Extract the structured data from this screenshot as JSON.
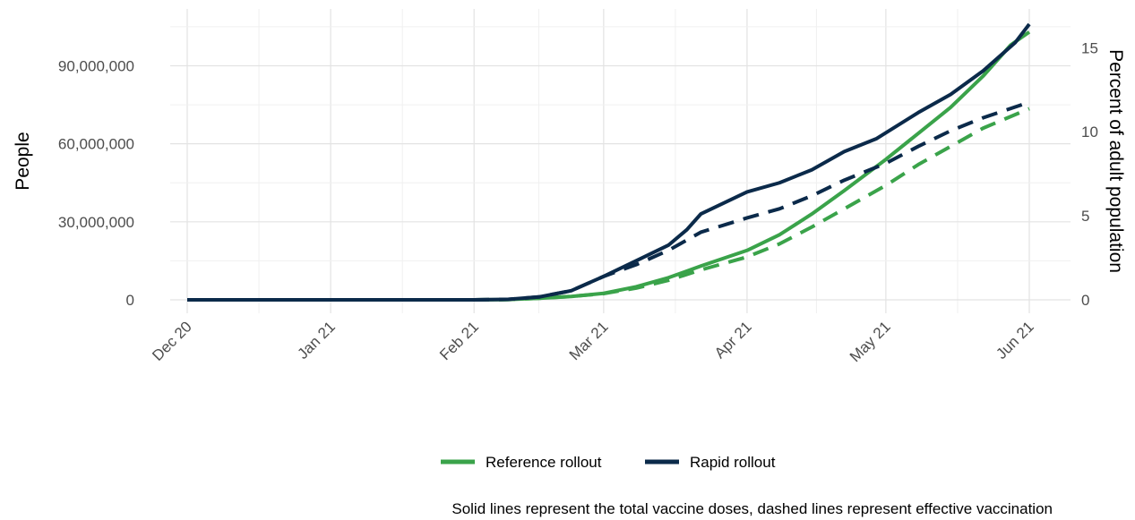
{
  "chart_data": {
    "type": "line",
    "title": "",
    "ylabel": "People",
    "y2label": "Percent of adult population",
    "caption": "Solid lines represent the total vaccine doses, dashed lines represent effective vaccination",
    "ylim": [
      0,
      106000000
    ],
    "y2lim": [
      0,
      16.4
    ],
    "yticks": [
      0,
      30000000,
      60000000,
      90000000
    ],
    "ytick_labels": [
      "0",
      "30,000,000",
      "60,000,000",
      "90,000,000"
    ],
    "y2ticks": [
      0,
      5,
      10,
      15
    ],
    "y2tick_labels": [
      "0",
      "5",
      "10",
      "15"
    ],
    "x_axis": {
      "type": "date",
      "range": [
        "2020-12-01",
        "2021-06-01"
      ],
      "ticks": [
        "2020-12-01",
        "2021-01-01",
        "2021-02-01",
        "2021-03-01",
        "2021-04-01",
        "2021-05-01",
        "2021-06-01"
      ],
      "tick_labels": [
        "Dec 20",
        "Jan 21",
        "Feb 21",
        "Mar 21",
        "Apr 21",
        "May 21",
        "Jun 21"
      ]
    },
    "grid": true,
    "legend_position": "bottom",
    "legend": [
      {
        "label": "Reference rollout",
        "color": "#3aa34a"
      },
      {
        "label": "Rapid rollout",
        "color": "#0b2a4a"
      }
    ],
    "series": [
      {
        "legend_index": 0,
        "line": "solid",
        "color": "#3aa34a",
        "points": [
          [
            "2020-12-01",
            0
          ],
          [
            "2021-01-01",
            0
          ],
          [
            "2021-02-01",
            0
          ],
          [
            "2021-02-08",
            80000
          ],
          [
            "2021-02-15",
            600000
          ],
          [
            "2021-02-22",
            1300000
          ],
          [
            "2021-03-01",
            2500000
          ],
          [
            "2021-03-08",
            5000000
          ],
          [
            "2021-03-15",
            8500000
          ],
          [
            "2021-03-22",
            13000000
          ],
          [
            "2021-04-01",
            19000000
          ],
          [
            "2021-04-08",
            25000000
          ],
          [
            "2021-04-15",
            33000000
          ],
          [
            "2021-04-22",
            42000000
          ],
          [
            "2021-05-01",
            54000000
          ],
          [
            "2021-05-08",
            64000000
          ],
          [
            "2021-05-15",
            74000000
          ],
          [
            "2021-05-22",
            86000000
          ],
          [
            "2021-05-28",
            98000000
          ],
          [
            "2021-06-01",
            103000000
          ]
        ]
      },
      {
        "legend_index": 0,
        "line": "dashed",
        "color": "#3aa34a",
        "points": [
          [
            "2020-12-01",
            0
          ],
          [
            "2021-01-01",
            0
          ],
          [
            "2021-02-01",
            0
          ],
          [
            "2021-02-08",
            80000
          ],
          [
            "2021-02-15",
            600000
          ],
          [
            "2021-02-22",
            1300000
          ],
          [
            "2021-03-01",
            2400000
          ],
          [
            "2021-03-08",
            4500000
          ],
          [
            "2021-03-15",
            7500000
          ],
          [
            "2021-03-22",
            11500000
          ],
          [
            "2021-04-01",
            16500000
          ],
          [
            "2021-04-08",
            21500000
          ],
          [
            "2021-04-15",
            28000000
          ],
          [
            "2021-04-22",
            35000000
          ],
          [
            "2021-05-01",
            44000000
          ],
          [
            "2021-05-08",
            52000000
          ],
          [
            "2021-05-15",
            59000000
          ],
          [
            "2021-05-22",
            66000000
          ],
          [
            "2021-06-01",
            73500000
          ]
        ]
      },
      {
        "legend_index": 1,
        "line": "solid",
        "color": "#0b2a4a",
        "points": [
          [
            "2020-12-01",
            0
          ],
          [
            "2021-01-01",
            0
          ],
          [
            "2021-02-01",
            0
          ],
          [
            "2021-02-08",
            150000
          ],
          [
            "2021-02-15",
            1100000
          ],
          [
            "2021-02-22",
            3500000
          ],
          [
            "2021-03-01",
            9000000
          ],
          [
            "2021-03-08",
            15000000
          ],
          [
            "2021-03-15",
            21000000
          ],
          [
            "2021-03-19",
            27000000
          ],
          [
            "2021-03-22",
            33000000
          ],
          [
            "2021-04-01",
            41500000
          ],
          [
            "2021-04-08",
            45000000
          ],
          [
            "2021-04-15",
            50000000
          ],
          [
            "2021-04-22",
            57000000
          ],
          [
            "2021-04-29",
            62000000
          ],
          [
            "2021-05-08",
            72000000
          ],
          [
            "2021-05-15",
            79000000
          ],
          [
            "2021-05-22",
            88000000
          ],
          [
            "2021-05-29",
            99000000
          ],
          [
            "2021-06-01",
            106000000
          ]
        ]
      },
      {
        "legend_index": 1,
        "line": "dashed",
        "color": "#0b2a4a",
        "points": [
          [
            "2020-12-01",
            0
          ],
          [
            "2021-01-01",
            0
          ],
          [
            "2021-02-01",
            0
          ],
          [
            "2021-02-08",
            150000
          ],
          [
            "2021-02-15",
            1100000
          ],
          [
            "2021-02-22",
            3500000
          ],
          [
            "2021-03-01",
            9000000
          ],
          [
            "2021-03-08",
            13500000
          ],
          [
            "2021-03-15",
            19000000
          ],
          [
            "2021-03-22",
            26000000
          ],
          [
            "2021-04-01",
            31500000
          ],
          [
            "2021-04-08",
            35000000
          ],
          [
            "2021-04-15",
            40000000
          ],
          [
            "2021-04-22",
            46000000
          ],
          [
            "2021-05-01",
            52500000
          ],
          [
            "2021-05-08",
            59000000
          ],
          [
            "2021-05-15",
            65000000
          ],
          [
            "2021-05-22",
            70000000
          ],
          [
            "2021-06-01",
            76000000
          ]
        ]
      }
    ]
  }
}
